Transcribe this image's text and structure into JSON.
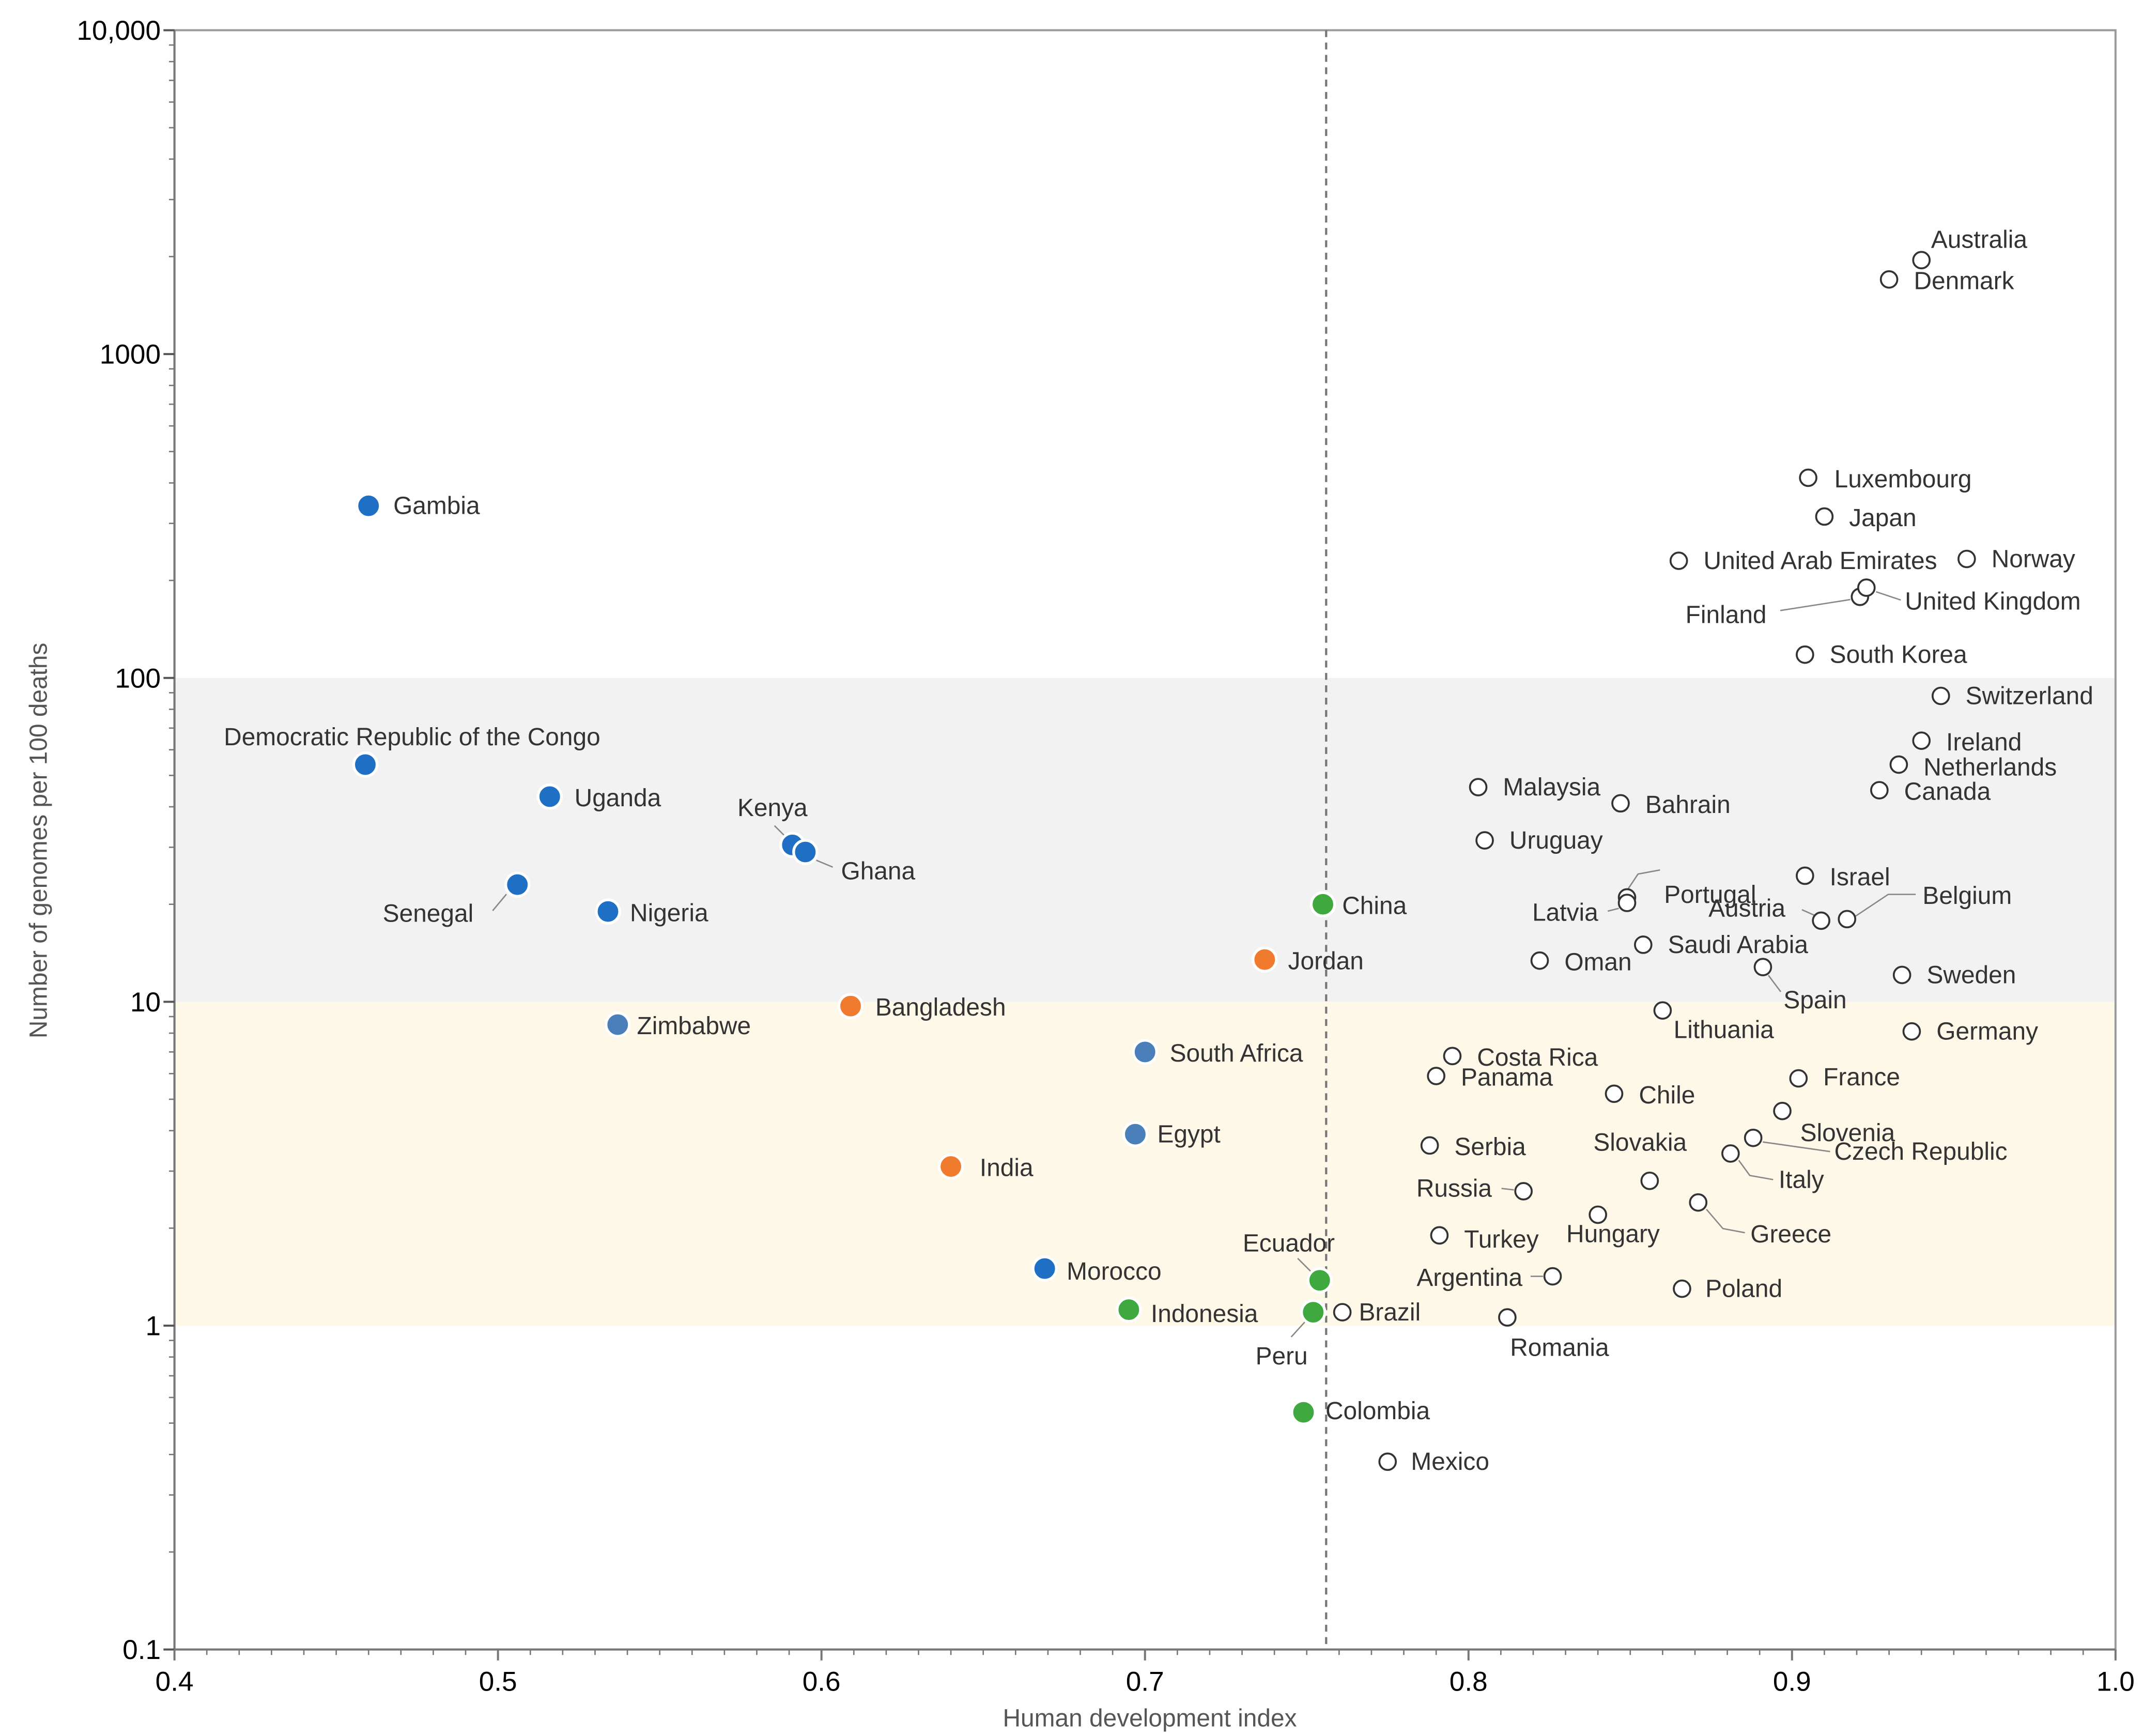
{
  "chart_data": {
    "type": "scatter",
    "xlabel": "Human development index",
    "ylabel": "Number of genomes per 100 deaths",
    "x_scale": "linear",
    "y_scale": "log",
    "xlim": [
      0.4,
      1.0
    ],
    "ylim": [
      0.1,
      10000
    ],
    "x_ticks": [
      {
        "v": 0.4,
        "label": "0.4"
      },
      {
        "v": 0.5,
        "label": "0.5"
      },
      {
        "v": 0.6,
        "label": "0.6"
      },
      {
        "v": 0.7,
        "label": "0.7"
      },
      {
        "v": 0.8,
        "label": "0.8"
      },
      {
        "v": 0.9,
        "label": "0.9"
      },
      {
        "v": 1.0,
        "label": "1.0"
      }
    ],
    "y_ticks": [
      {
        "v": 0.1,
        "label": "0.1"
      },
      {
        "v": 1,
        "label": "1"
      },
      {
        "v": 10,
        "label": "10"
      },
      {
        "v": 100,
        "label": "100"
      },
      {
        "v": 1000,
        "label": "1000"
      },
      {
        "v": 10000,
        "label": "10,000"
      }
    ],
    "bands": [
      {
        "from": 10,
        "to": 100,
        "color": "#f2f2f3"
      },
      {
        "from": 1,
        "to": 10,
        "color": "#fdf8e8"
      }
    ],
    "threshold_x": 0.756,
    "colors": {
      "blue": "#1f6fc5",
      "steel": "#4a7fb9",
      "orange": "#f07a2e",
      "green": "#3fa83f",
      "open": "#ffffff"
    },
    "points": [
      {
        "name": "Gambia",
        "x": 0.46,
        "y": 340,
        "group": "blue"
      },
      {
        "name": "Democratic Republic of the Congo",
        "x": 0.459,
        "y": 54,
        "group": "blue"
      },
      {
        "name": "Uganda",
        "x": 0.516,
        "y": 43,
        "group": "blue"
      },
      {
        "name": "Senegal",
        "x": 0.506,
        "y": 23,
        "group": "blue"
      },
      {
        "name": "Nigeria",
        "x": 0.534,
        "y": 19,
        "group": "blue"
      },
      {
        "name": "Kenya",
        "x": 0.591,
        "y": 30.5,
        "group": "blue"
      },
      {
        "name": "Ghana",
        "x": 0.595,
        "y": 29,
        "group": "blue"
      },
      {
        "name": "Zimbabwe",
        "x": 0.537,
        "y": 8.5,
        "group": "steel"
      },
      {
        "name": "Bangladesh",
        "x": 0.609,
        "y": 9.7,
        "group": "orange"
      },
      {
        "name": "South Africa",
        "x": 0.7,
        "y": 7.0,
        "group": "steel"
      },
      {
        "name": "Egypt",
        "x": 0.697,
        "y": 3.9,
        "group": "steel"
      },
      {
        "name": "India",
        "x": 0.64,
        "y": 3.1,
        "group": "orange"
      },
      {
        "name": "Morocco",
        "x": 0.669,
        "y": 1.5,
        "group": "blue"
      },
      {
        "name": "Indonesia",
        "x": 0.695,
        "y": 1.12,
        "group": "green"
      },
      {
        "name": "Jordan",
        "x": 0.737,
        "y": 13.5,
        "group": "orange"
      },
      {
        "name": "China",
        "x": 0.755,
        "y": 20,
        "group": "green"
      },
      {
        "name": "Ecuador",
        "x": 0.754,
        "y": 1.38,
        "group": "green"
      },
      {
        "name": "Peru",
        "x": 0.752,
        "y": 1.1,
        "group": "green"
      },
      {
        "name": "Colombia",
        "x": 0.749,
        "y": 0.54,
        "group": "green"
      },
      {
        "name": "Brazil",
        "x": 0.761,
        "y": 1.1,
        "group": "open"
      },
      {
        "name": "Mexico",
        "x": 0.775,
        "y": 0.38,
        "group": "open"
      },
      {
        "name": "Australia",
        "x": 0.94,
        "y": 1950,
        "group": "open"
      },
      {
        "name": "Denmark",
        "x": 0.93,
        "y": 1700,
        "group": "open"
      },
      {
        "name": "Luxembourg",
        "x": 0.905,
        "y": 415,
        "group": "open"
      },
      {
        "name": "Japan",
        "x": 0.91,
        "y": 315,
        "group": "open"
      },
      {
        "name": "United Arab Emirates",
        "x": 0.865,
        "y": 230,
        "group": "open"
      },
      {
        "name": "Norway",
        "x": 0.954,
        "y": 233,
        "group": "open"
      },
      {
        "name": "Finland",
        "x": 0.921,
        "y": 178,
        "group": "open"
      },
      {
        "name": "United Kingdom",
        "x": 0.923,
        "y": 190,
        "group": "open"
      },
      {
        "name": "South Korea",
        "x": 0.904,
        "y": 118,
        "group": "open"
      },
      {
        "name": "Switzerland",
        "x": 0.946,
        "y": 88,
        "group": "open"
      },
      {
        "name": "Ireland",
        "x": 0.94,
        "y": 64,
        "group": "open"
      },
      {
        "name": "Netherlands",
        "x": 0.933,
        "y": 54,
        "group": "open"
      },
      {
        "name": "Canada",
        "x": 0.927,
        "y": 45,
        "group": "open"
      },
      {
        "name": "Malaysia",
        "x": 0.803,
        "y": 46,
        "group": "open"
      },
      {
        "name": "Bahrain",
        "x": 0.847,
        "y": 41,
        "group": "open"
      },
      {
        "name": "Uruguay",
        "x": 0.805,
        "y": 31.5,
        "group": "open"
      },
      {
        "name": "Portugal",
        "x": 0.849,
        "y": 21,
        "group": "open"
      },
      {
        "name": "Latvia",
        "x": 0.849,
        "y": 20.2,
        "group": "open"
      },
      {
        "name": "Israel",
        "x": 0.904,
        "y": 24.5,
        "group": "open"
      },
      {
        "name": "Austria",
        "x": 0.909,
        "y": 17.8,
        "group": "open"
      },
      {
        "name": "Belgium",
        "x": 0.917,
        "y": 18,
        "group": "open"
      },
      {
        "name": "Saudi Arabia",
        "x": 0.854,
        "y": 15,
        "group": "open"
      },
      {
        "name": "Oman",
        "x": 0.822,
        "y": 13.4,
        "group": "open"
      },
      {
        "name": "Spain",
        "x": 0.891,
        "y": 12.8,
        "group": "open"
      },
      {
        "name": "Sweden",
        "x": 0.934,
        "y": 12.1,
        "group": "open"
      },
      {
        "name": "Lithuania",
        "x": 0.86,
        "y": 9.4,
        "group": "open"
      },
      {
        "name": "Germany",
        "x": 0.937,
        "y": 8.1,
        "group": "open"
      },
      {
        "name": "Costa Rica",
        "x": 0.795,
        "y": 6.8,
        "group": "open"
      },
      {
        "name": "Panama",
        "x": 0.79,
        "y": 5.9,
        "group": "open"
      },
      {
        "name": "Chile",
        "x": 0.845,
        "y": 5.2,
        "group": "open"
      },
      {
        "name": "France",
        "x": 0.902,
        "y": 5.8,
        "group": "open"
      },
      {
        "name": "Slovenia",
        "x": 0.897,
        "y": 4.6,
        "group": "open"
      },
      {
        "name": "Czech Republic",
        "x": 0.888,
        "y": 3.8,
        "group": "open"
      },
      {
        "name": "Serbia",
        "x": 0.788,
        "y": 3.6,
        "group": "open"
      },
      {
        "name": "Italy",
        "x": 0.881,
        "y": 3.4,
        "group": "open"
      },
      {
        "name": "Slovakia",
        "x": 0.856,
        "y": 2.8,
        "group": "open"
      },
      {
        "name": "Russia",
        "x": 0.817,
        "y": 2.6,
        "group": "open"
      },
      {
        "name": "Greece",
        "x": 0.871,
        "y": 2.4,
        "group": "open"
      },
      {
        "name": "Hungary",
        "x": 0.84,
        "y": 2.2,
        "group": "open"
      },
      {
        "name": "Turkey",
        "x": 0.791,
        "y": 1.9,
        "group": "open"
      },
      {
        "name": "Argentina",
        "x": 0.826,
        "y": 1.42,
        "group": "open"
      },
      {
        "name": "Poland",
        "x": 0.866,
        "y": 1.3,
        "group": "open"
      },
      {
        "name": "Romania",
        "x": 0.812,
        "y": 1.06,
        "group": "open"
      }
    ]
  }
}
